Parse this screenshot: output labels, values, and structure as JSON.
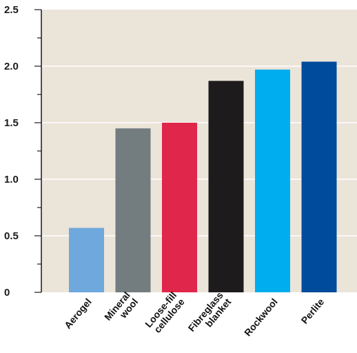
{
  "chart_data": {
    "type": "bar",
    "title": "",
    "xlabel": "",
    "ylabel": "",
    "categories": [
      {
        "lines": [
          "Aerogel"
        ],
        "color": "#6fa8dc"
      },
      {
        "lines": [
          "Mineral",
          "wool"
        ],
        "color": "#737d80"
      },
      {
        "lines": [
          "Loose-fill",
          "cellulose"
        ],
        "color": "#e0264a"
      },
      {
        "lines": [
          "Fibreglass",
          "blanket"
        ],
        "color": "#1e1b1c"
      },
      {
        "lines": [
          "Rockwool"
        ],
        "color": "#00aeef"
      },
      {
        "lines": [
          "Perlite"
        ],
        "color": "#004b9b"
      }
    ],
    "values": [
      0.57,
      1.45,
      1.5,
      1.87,
      1.97,
      2.04
    ],
    "ylim": [
      0,
      2.5
    ],
    "yticks": [
      {
        "value": 0,
        "label": "0"
      },
      {
        "value": 0.5,
        "label": "0.5"
      },
      {
        "value": 1.0,
        "label": "1.0"
      },
      {
        "value": 1.5,
        "label": "1.5"
      },
      {
        "value": 2.0,
        "label": "2.0"
      },
      {
        "value": 2.5,
        "label": "2.5"
      }
    ],
    "minor_step": 0.25,
    "grid": true,
    "colors": {
      "plot_background": "#ebe4d9",
      "gridline": "#ffffff",
      "axis": "#1a1a1a"
    }
  }
}
